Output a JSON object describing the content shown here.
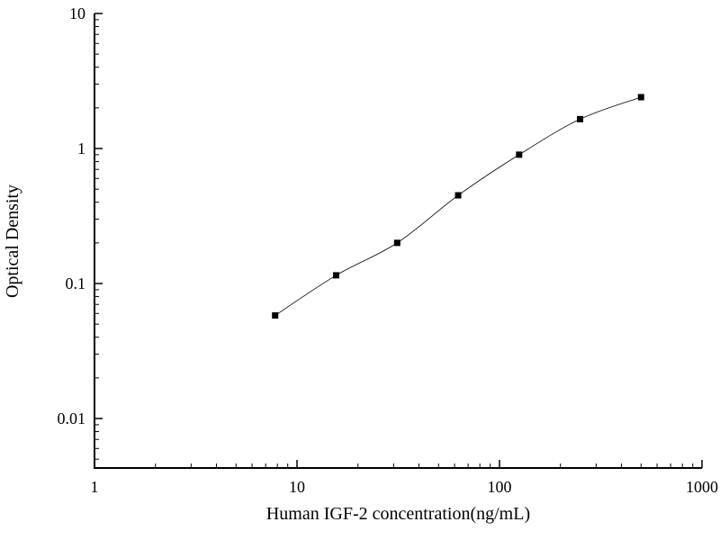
{
  "chart_data": {
    "type": "scatter",
    "title": "",
    "xlabel": "Human IGF-2 concentration(ng/mL)",
    "ylabel": "Optical Density",
    "x_scale": "log",
    "y_scale": "log",
    "x": [
      7.8,
      15.6,
      31.25,
      62.5,
      125,
      250,
      500
    ],
    "y": [
      0.058,
      0.115,
      0.2,
      0.45,
      0.9,
      1.65,
      2.4
    ],
    "x_range": [
      1,
      1000
    ],
    "y_range": [
      0.0043,
      10
    ],
    "x_ticks": [
      1,
      10,
      100,
      1000
    ],
    "x_tick_labels": [
      "1",
      "10",
      "100",
      "1000"
    ],
    "y_ticks": [
      0.01,
      0.1,
      1,
      10
    ],
    "y_tick_labels": [
      "0.01",
      "0.1",
      "1",
      "10"
    ],
    "grid": false,
    "legend": null,
    "marker": "filled-square",
    "marker_color": "#000000",
    "line_color": "#000000",
    "axis_color": "#000000",
    "background": "#ffffff"
  }
}
